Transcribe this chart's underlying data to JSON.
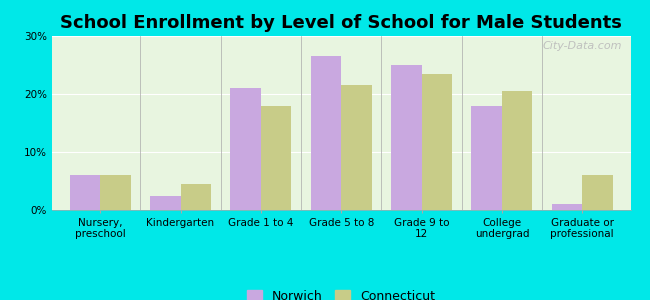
{
  "title": "School Enrollment by Level of School for Male Students",
  "categories": [
    "Nursery,\npreschool",
    "Kindergarten",
    "Grade 1 to 4",
    "Grade 5 to 8",
    "Grade 9 to\n12",
    "College\nundergrad",
    "Graduate or\nprofessional"
  ],
  "norwich": [
    6.0,
    2.5,
    21.0,
    26.5,
    25.0,
    18.0,
    1.0
  ],
  "connecticut": [
    6.0,
    4.5,
    18.0,
    21.5,
    23.5,
    20.5,
    6.0
  ],
  "norwich_color": "#c9a8e0",
  "connecticut_color": "#c8cc88",
  "background_color": "#00e8e8",
  "plot_bg": "#e8f5e0",
  "ylabel_ticks": [
    "0%",
    "10%",
    "20%",
    "30%"
  ],
  "ytick_vals": [
    0,
    10,
    20,
    30
  ],
  "ylim": [
    0,
    30
  ],
  "title_fontsize": 13,
  "tick_fontsize": 7.5,
  "legend_fontsize": 9,
  "bar_width": 0.38,
  "watermark": "City-Data.com"
}
